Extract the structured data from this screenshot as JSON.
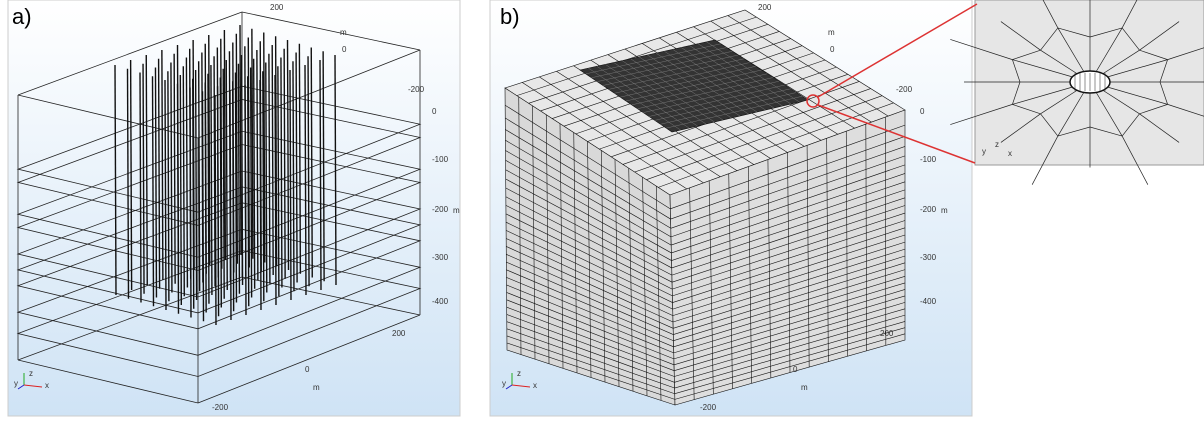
{
  "panels": [
    {
      "label": "a)",
      "axes": {
        "top": [
          200,
          "m",
          0,
          -200
        ],
        "vertical": [
          0,
          -100,
          -200,
          "m",
          -300,
          -400
        ],
        "bottom": [
          200,
          0,
          "m",
          -200
        ]
      },
      "triad": [
        "y",
        "z",
        "x"
      ]
    },
    {
      "label": "b)",
      "axes": {
        "top": [
          200,
          "m",
          0,
          -200
        ],
        "vertical": [
          0,
          -100,
          -200,
          "m",
          -300,
          -400
        ],
        "bottom": [
          200,
          0,
          "m",
          -200
        ]
      },
      "triad": [
        "y",
        "z",
        "x"
      ]
    }
  ],
  "inset": {
    "triad": [
      "y",
      "z",
      "x"
    ]
  }
}
